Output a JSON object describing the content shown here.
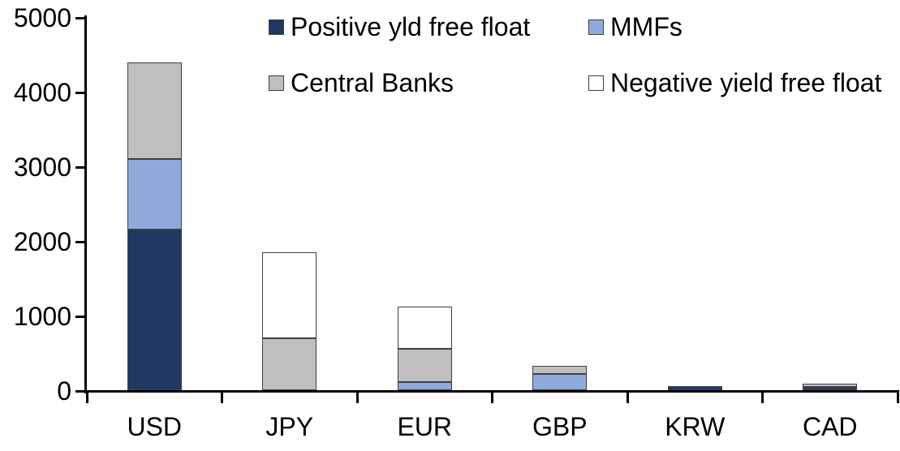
{
  "chart_data": {
    "type": "bar",
    "stacked": true,
    "title": "",
    "xlabel": "",
    "ylabel": "",
    "categories": [
      "USD",
      "JPY",
      "EUR",
      "GBP",
      "KRW",
      "CAD"
    ],
    "series": [
      {
        "name": "Positive yld free float",
        "color": "#1F3864",
        "values": [
          2150,
          0,
          0,
          0,
          50,
          40
        ]
      },
      {
        "name": "MMFs",
        "color": "#8EAADB",
        "values": [
          950,
          0,
          110,
          220,
          0,
          0
        ]
      },
      {
        "name": "Central Banks",
        "color": "#BFBFBF",
        "values": [
          1290,
          700,
          440,
          110,
          0,
          45
        ]
      },
      {
        "name": "Negative yield free float",
        "color": "#FFFFFF",
        "values": [
          0,
          1150,
          570,
          0,
          0,
          0
        ]
      }
    ],
    "ylim": [
      0,
      5000
    ],
    "ytick_interval": 1000,
    "ytick_labels": [
      "0",
      "1000",
      "2000",
      "3000",
      "4000",
      "5000"
    ],
    "grid": false,
    "legend_position": "top-two-column",
    "colors": {
      "axis": "#000000",
      "segment_border": "#404040",
      "background": "#FFFFFF"
    }
  }
}
